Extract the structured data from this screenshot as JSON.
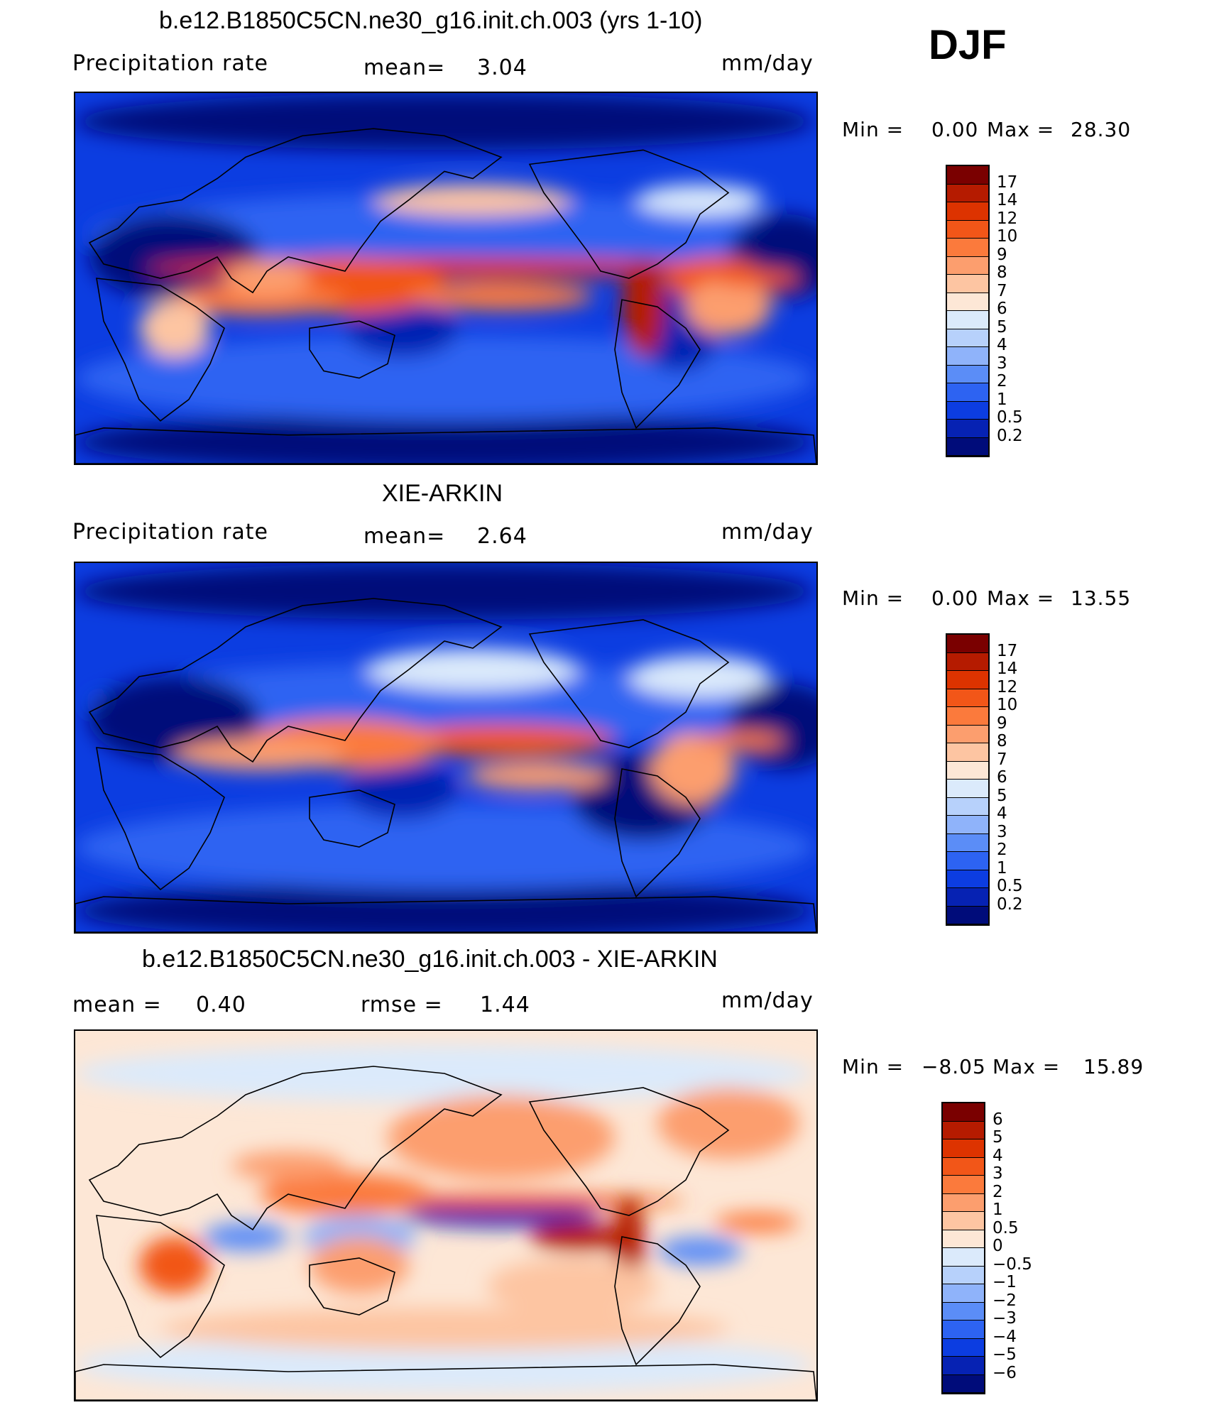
{
  "season": "DJF",
  "panels": [
    {
      "id": "model",
      "title": "b.e12.B1850C5CN.ne30_g16.init.ch.003 (yrs 1-10)",
      "left_label": "Precipitation  rate",
      "mid_label": "mean=",
      "mid_value": "3.04",
      "units": "mm/day",
      "min_label": "Min  =",
      "min_value": "0.00",
      "max_label": "Max  =",
      "max_value": "28.30"
    },
    {
      "id": "obs",
      "title": "XIE-ARKIN",
      "left_label": "Precipitation  rate",
      "mid_label": "mean=",
      "mid_value": "2.64",
      "units": "mm/day",
      "min_label": "Min  =",
      "min_value": "0.00",
      "max_label": "Max  =",
      "max_value": "13.55"
    },
    {
      "id": "diff",
      "title": "b.e12.B1850C5CN.ne30_g16.init.ch.003 - XIE-ARKIN",
      "left_label": "mean  =",
      "left_value": "0.40",
      "mid_label": "rmse  =",
      "mid_value": "1.44",
      "units": "mm/day",
      "min_label": "Min  =",
      "min_value": "−8.05",
      "max_label": "Max  =",
      "max_value": "15.89"
    }
  ],
  "chart_data": [
    {
      "type": "heatmap",
      "title": "b.e12.B1850C5CN.ne30_g16.init.ch.003 (yrs 1-10)",
      "variable": "Precipitation  rate",
      "units": "mm/day",
      "mean": 3.04,
      "min": 0.0,
      "max": 28.3,
      "colorbar_levels": [
        "17",
        "14",
        "12",
        "10",
        "9",
        "8",
        "7",
        "6",
        "5",
        "4",
        "3",
        "2",
        "1",
        "0.5",
        "0.2"
      ],
      "colorbar_colors": [
        "#7a0000",
        "#b51b00",
        "#dd3300",
        "#f25618",
        "#fb7a3c",
        "#fc9e6e",
        "#fdc5a2",
        "#fde7d6",
        "#dbeafb",
        "#b7d1fb",
        "#8fb3fa",
        "#5b8df7",
        "#2d63f2",
        "#0c3de1",
        "#0622b3",
        "#000c7a"
      ]
    },
    {
      "type": "heatmap",
      "title": "XIE-ARKIN",
      "variable": "Precipitation  rate",
      "units": "mm/day",
      "mean": 2.64,
      "min": 0.0,
      "max": 13.55,
      "colorbar_levels": [
        "17",
        "14",
        "12",
        "10",
        "9",
        "8",
        "7",
        "6",
        "5",
        "4",
        "3",
        "2",
        "1",
        "0.5",
        "0.2"
      ],
      "colorbar_colors": [
        "#7a0000",
        "#b51b00",
        "#dd3300",
        "#f25618",
        "#fb7a3c",
        "#fc9e6e",
        "#fdc5a2",
        "#fde7d6",
        "#dbeafb",
        "#b7d1fb",
        "#8fb3fa",
        "#5b8df7",
        "#2d63f2",
        "#0c3de1",
        "#0622b3",
        "#000c7a"
      ]
    },
    {
      "type": "heatmap",
      "title": "b.e12.B1850C5CN.ne30_g16.init.ch.003 - XIE-ARKIN",
      "units": "mm/day",
      "mean": 0.4,
      "rmse": 1.44,
      "min": -8.05,
      "max": 15.89,
      "colorbar_levels": [
        "6",
        "5",
        "4",
        "3",
        "2",
        "1",
        "0.5",
        "0",
        "−0.5",
        "−1",
        "−2",
        "−3",
        "−4",
        "−5",
        "−6"
      ],
      "colorbar_colors": [
        "#7a0000",
        "#b51b00",
        "#dd3300",
        "#f25618",
        "#fb7a3c",
        "#fc9e6e",
        "#fdc5a2",
        "#fde7d6",
        "#dbeafb",
        "#b7d1fb",
        "#8fb3fa",
        "#5b8df7",
        "#2d63f2",
        "#0c3de1",
        "#0622b3",
        "#000c7a"
      ]
    }
  ]
}
